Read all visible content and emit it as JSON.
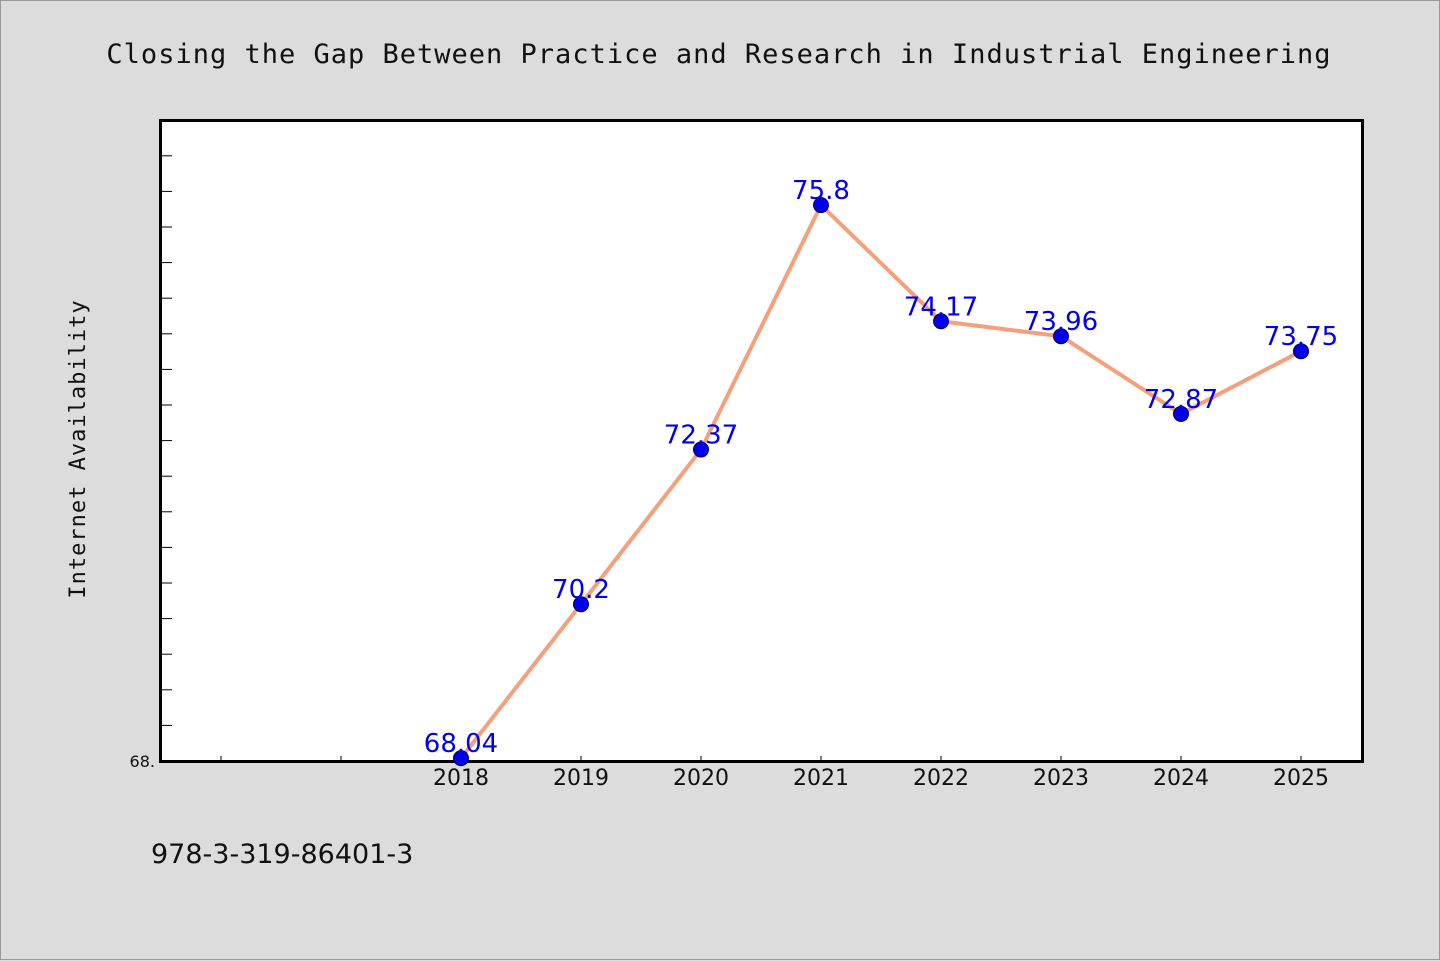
{
  "chart_data": {
    "type": "line",
    "title": "Closing the Gap Between Practice and Research in Industrial Engineering",
    "xlabel": "",
    "ylabel": "Internet Availability",
    "categories": [
      "2018",
      "2019",
      "2020",
      "2021",
      "2022",
      "2023",
      "2024",
      "2025"
    ],
    "series": [
      {
        "values": [
          68.04,
          70.2,
          72.37,
          75.8,
          74.17,
          73.96,
          72.87,
          73.75
        ],
        "labels": [
          "68.04",
          "70.2",
          "72.37",
          "75.8",
          "74.17",
          "73.96",
          "72.87",
          "73.75"
        ]
      }
    ],
    "ylim": [
      68.0,
      76.98
    ],
    "y_tick_label": "68.",
    "grid": false,
    "legend": "none",
    "line_color": "#f4a07c",
    "marker_color": "#0000ee",
    "label_color": "#0000ee",
    "background_color": "#dcdcdc",
    "plot_background": "#ffffff"
  },
  "footer": "978-3-319-86401-3"
}
